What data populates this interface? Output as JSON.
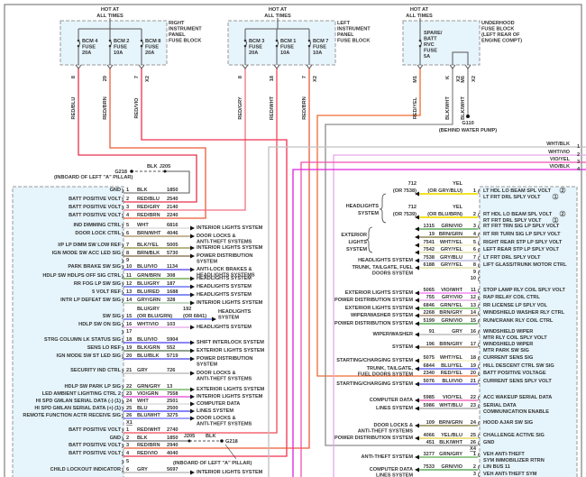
{
  "colors": {
    "RED/BLU": "#e8304a",
    "RED/BRN": "#ee5a38",
    "RED/VIO": "#f03050",
    "RED/GRY": "#f07080",
    "RED/WHT": "#f04858",
    "RED/YEL": "#f06a30",
    "BLK": "#7a7a7a",
    "BLK/WHT": "#8c8c8c",
    "WHT": "#d8d8d8",
    "BRN/WHT": "#a88a5a",
    "BLK/YEL": "#8a8a3a",
    "BRN/BLK": "#7a6040",
    "BLU/VIO": "#4a3cf0",
    "GRN/BRN": "#5a9a3a",
    "BLU/GRY": "#4a5af0",
    "BLU/RED": "#3a4af0",
    "GRY/GRN": "#a0c0a0",
    "WHT/VIO": "#e8a8e8",
    "BLU/BLK": "#4040e0",
    "BLK/GRN": "#4a6a4a",
    "GRY": "#b0b0b0",
    "GRN/GRY": "#5aaa4a",
    "VIO/GRN": "#e040d8",
    "BLU": "#3a3af8",
    "BLU/WHT": "#6a6af8",
    "YEL": "#f2e22a",
    "GRN/VIO": "#3a9a3a",
    "BRN/GRN": "#7a7030",
    "WHT/YEL": "#f2eebc",
    "GRY/YEL": "#dcdca0",
    "GRY/BLU": "#b0b0e0",
    "VIO/WHT": "#f070f0",
    "GRY/VIO": "#e0a0e0",
    "GRN/YEL": "#5ac040",
    "BRN/GRY": "#a08060",
    "BLU/YEL": "#5050f0",
    "YEL/BLU": "#e0d040",
    "VIO/YEL": "#f050b0",
    "WHT/BLK": "#c0c0c0",
    "VIO/BLK": "#e020e0"
  },
  "fuse_blocks": [
    {
      "hot": [
        "HOT AT",
        "ALL TIMES"
      ],
      "title": [
        "RIGHT",
        "INSTRUMENT",
        "PANEL",
        "FUSE BLOCK"
      ],
      "fuses": [
        {
          "name": [
            "BCM 4",
            "FUSE",
            "20A"
          ],
          "pin": "8",
          "conn": "",
          "wire": "RED/BLU"
        },
        {
          "name": [
            "BCM 2",
            "FUSE",
            "10A"
          ],
          "pin": "29",
          "conn": "",
          "wire": "RED/BRN"
        },
        {
          "name": [
            "BCM 8",
            "FUSE",
            "20A"
          ],
          "pin": "7",
          "conn": "X2",
          "wire": "RED/VIO"
        }
      ]
    },
    {
      "hot": [
        "HOT AT",
        "ALL TIMES"
      ],
      "title": [
        "LEFT",
        "INSTRUMENT",
        "PANEL",
        "FUSE BLOCK"
      ],
      "fuses": [
        {
          "name": [
            "BCM 3",
            "FUSE",
            "20A"
          ],
          "pin": "8",
          "conn": "",
          "wire": "RED/GRY"
        },
        {
          "name": [
            "BCM 1",
            "FUSE",
            "10A"
          ],
          "pin": "18",
          "conn": "",
          "wire": "RED/WHT"
        },
        {
          "name": [
            "BCM 7",
            "FUSE",
            "10A"
          ],
          "pin": "7",
          "conn": "X2",
          "wire": "RED/BRN"
        }
      ]
    },
    {
      "hot": [
        "HOT AT",
        "ALL TIMES"
      ],
      "title": [
        "UNDERHOOD",
        "FUSE BLOCK",
        "(LEFT REAR OF",
        "ENGINE COMPT)"
      ],
      "fuses": [
        {
          "name": [
            "SPARE/",
            "BATT",
            "RVC",
            "FUSE",
            "5A"
          ],
          "pin": "M1",
          "conn": "",
          "wire": "RED/YEL"
        },
        {
          "name": [],
          "pin": "K",
          "conn": "X2",
          "wire": "BLK/WHT"
        },
        {
          "name": [],
          "pin": "M6",
          "conn": "X2",
          "wire": "BLK/WHT"
        }
      ]
    }
  ],
  "grounds": {
    "g218_top": {
      "name": "G218",
      "splice": "J205",
      "wire": "BLK",
      "location": "(INBOARD OF LEFT \"A\" PILLAR)"
    },
    "g218_bottom": {
      "name": "G218",
      "splice": "J205",
      "wire": "BLK",
      "location": "(INBOARD OF LEFT \"A\" PILLAR)"
    },
    "g110": {
      "name": "G110",
      "location": "(BEHIND WATER PUMP)"
    }
  },
  "bus_wires": [
    {
      "color": "WHT/BLK",
      "pin": "1"
    },
    {
      "color": "WHT/VIO",
      "pin": "2"
    },
    {
      "color": "VIO/YEL",
      "pin": "3"
    },
    {
      "color": "VIO/BLK",
      "pin": "4"
    }
  ],
  "left_connector": {
    "pins": [
      {
        "pin": "1",
        "label": "GND",
        "color": [
          "BLK"
        ],
        "circuit": [
          "1850"
        ],
        "dest": []
      },
      {
        "pin": "2",
        "label": "BATT POSITIVE VOLT",
        "color": [
          "RED/BLU"
        ],
        "circuit": [
          "2540"
        ],
        "dest": []
      },
      {
        "pin": "3",
        "label": "BATT POSITIVE VOLT",
        "color": [
          "RED/GRY"
        ],
        "circuit": [
          "2140"
        ],
        "dest": []
      },
      {
        "pin": "4",
        "label": "BATT POSITIVE VOLT",
        "color": [
          "RED/BRN"
        ],
        "circuit": [
          "2240"
        ],
        "dest": []
      },
      {
        "pin": "5",
        "label": "IND DIMMING CTRL",
        "color": [
          "WHT"
        ],
        "circuit": [
          "6816"
        ],
        "dest": [
          "INTERIOR LIGHTS SYSTEM"
        ]
      },
      {
        "pin": "6",
        "label": "DOOR LOCK CTRL",
        "color": [
          "BRN/WHT"
        ],
        "circuit": [
          "4046"
        ],
        "dest": [
          "DOOR LOCKS &",
          "ANTI-THEFT SYSTEMS"
        ]
      },
      {
        "pin": "7",
        "label": "I/P LP DIMM SW LOW REF",
        "color": [
          "BLK/YEL"
        ],
        "circuit": [
          "5005"
        ],
        "dest": [
          "INTERIOR LIGHTS SYSTEM"
        ]
      },
      {
        "pin": "8",
        "label": "IGN MODE SW ACC LED SIG",
        "color": [
          "BRN/BLK"
        ],
        "circuit": [
          "5730"
        ],
        "dest": [
          "POWER DISTRIBUTION",
          "SYSTEM"
        ]
      },
      {
        "pin": "9",
        "label": "",
        "color": [],
        "circuit": [],
        "dest": []
      },
      {
        "pin": "10",
        "label": "PARK BRAKE SW SIG",
        "color": [
          "BLU/VIO"
        ],
        "circuit": [
          "1134"
        ],
        "dest": [
          "ANTI-LOCK BRAKES &",
          "HEADLIGHTS SYSTEMS"
        ]
      },
      {
        "pin": "11",
        "label": "HDLP SW HDLPS OFF SIG CTRL",
        "color": [
          "GRN/BRN"
        ],
        "circuit": [
          "308"
        ],
        "dest": [
          "HEADLIGHTS SYSTEM"
        ]
      },
      {
        "pin": "12",
        "label": "RR FOG LP SW SIG",
        "color": [
          "BLU/GRY"
        ],
        "circuit": [
          "187"
        ],
        "dest": [
          "HEADLIGHTS SYSTEM"
        ]
      },
      {
        "pin": "13",
        "label": "5 VOLT REF",
        "color": [
          "BLU/RED"
        ],
        "circuit": [
          "1688"
        ],
        "dest": [
          "HEADLIGHTS SYSTEM"
        ]
      },
      {
        "pin": "14",
        "label": "INTR LP DEFEAT SW SIG",
        "color": [
          "GRY/GRN"
        ],
        "circuit": [
          "328"
        ],
        "dest": [
          "INTERIOR LIGHTS SYSTEM"
        ]
      },
      {
        "pin": "15",
        "label": "SW SIG",
        "color": [
          "BLU/GRY",
          "(OR BLU/GRN)"
        ],
        "circuit": [
          "192",
          "(OR 6841)"
        ],
        "dest": [
          "HEADLIGHTS",
          "SYSTEM"
        ]
      },
      {
        "pin": "16",
        "label": "HDLP SW ON SIG",
        "color": [
          "WHT/VIO"
        ],
        "circuit": [
          "103"
        ],
        "dest": [
          "HEADLIGHTS SYSTEM"
        ]
      },
      {
        "pin": "17",
        "label": "",
        "color": [],
        "circuit": [],
        "dest": []
      },
      {
        "pin": "18",
        "label": "STRG COLUMN LK STATUS SIG",
        "color": [
          "BLU/VIO"
        ],
        "circuit": [
          "5904"
        ],
        "dest": [
          "SHIFT INTERLOCK SYSTEM"
        ]
      },
      {
        "pin": "19",
        "label": "SENS LO REF",
        "color": [
          "BLK/GRN"
        ],
        "circuit": [
          "552"
        ],
        "dest": [
          "EXTERIOR LIGHTS SYSTEM"
        ]
      },
      {
        "pin": "20",
        "label": "IGN MODE SW ST LED SIG",
        "color": [
          "BLU/BLK"
        ],
        "circuit": [
          "5719"
        ],
        "dest": [
          "POWER DISTRIBUTION",
          "SYSTEM"
        ]
      },
      {
        "pin": "21",
        "label": "SECURITY IND CTRL",
        "color": [
          "GRY"
        ],
        "circuit": [
          "726"
        ],
        "dest": [
          "DOOR LOCKS &",
          "ANTI-THEFT SYSTEMS"
        ]
      },
      {
        "pin": "22",
        "label": "HDLP SW PARK LP SIG",
        "color": [
          "GRN/GRY"
        ],
        "circuit": [
          "13"
        ],
        "dest": [
          "EXTERIOR LIGHTS SYSTEM"
        ]
      },
      {
        "pin": "23",
        "label": "LED AMBIENT LIGHTING CTRL 2",
        "color": [
          "VIO/GRN"
        ],
        "circuit": [
          "7558"
        ],
        "dest": [
          "INTERIOR LIGHTS SYSTEM"
        ]
      },
      {
        "pin": "24",
        "label": "HI SPD GMLAN SERIAL DATA (-) (1)",
        "color": [
          "WHT"
        ],
        "circuit": [
          "2501"
        ],
        "dest": [
          "COMPUTER DATA"
        ]
      },
      {
        "pin": "25",
        "label": "HI SPD GMLAN SERIAL DATA (+) (1)",
        "color": [
          "BLU"
        ],
        "circuit": [
          "2500"
        ],
        "dest": [
          "LINES SYSTEM"
        ]
      },
      {
        "pin": "26",
        "label": "REMOTE FUNCTION ACTR RECEIVE SIG",
        "color": [
          "BLU/WHT"
        ],
        "circuit": [
          "3275"
        ],
        "dest": [
          "DOOR LOCKS &",
          "ANTI-THEFT SYSTEMS"
        ]
      }
    ],
    "x1_label": "X1",
    "x1_pins": [
      {
        "pin": "1",
        "label": "BATT POSITIVE VOLT",
        "color": [
          "RED/WHT"
        ],
        "circuit": [
          "2740"
        ],
        "dest": []
      },
      {
        "pin": "2",
        "label": "GND",
        "color": [
          "BLK"
        ],
        "circuit": [
          "1850"
        ],
        "dest": []
      },
      {
        "pin": "3",
        "label": "BATT POSITIVE VOLT",
        "color": [
          "RED/BRN"
        ],
        "circuit": [
          "2940"
        ],
        "dest": []
      },
      {
        "pin": "4",
        "label": "BATT POSITIVE VOLT",
        "color": [
          "RED/VIO"
        ],
        "circuit": [
          "4040"
        ],
        "dest": []
      },
      {
        "pin": "5",
        "label": "",
        "color": [],
        "circuit": [],
        "dest": []
      },
      {
        "pin": "6",
        "label": "CHILD LOCKOUT INDICATOR",
        "color": [
          "GRY"
        ],
        "circuit": [
          "5697"
        ],
        "dest": [
          "INTERIOR LIGHTS SYSTEM"
        ]
      }
    ]
  },
  "right_connector": {
    "pins": [
      {
        "pin": "1",
        "label": [
          "LT HDL LO BEAM SPL VOLT",
          "LT FRT DRL SPLY VOLT"
        ],
        "notes": [
          "2",
          "1"
        ],
        "color": [
          "YEL",
          "(OR GRY/BLU)"
        ],
        "circuit": [
          "712",
          "(OR 7538)"
        ],
        "dest": []
      },
      {
        "pin": "2",
        "label": [
          "RT HDL LO BEAM SPL VOLT",
          "RT FRT DRL SPLY VOLT"
        ],
        "notes": [
          "2",
          "1"
        ],
        "color": [
          "YEL",
          "(OR BLU/BRN)"
        ],
        "circuit": [
          "712",
          "(OR 7539)"
        ],
        "dest": []
      },
      {
        "pin": "3",
        "label": [
          "RT FRT TRN SIG LP SPLY VOLT"
        ],
        "color": [
          "GRN/VIO"
        ],
        "circuit": [
          "1315"
        ],
        "dest": []
      },
      {
        "pin": "4",
        "label": [
          "RT RR TURN SIG LP SPLY VOLT"
        ],
        "color": [
          "BRN/GRN"
        ],
        "circuit": [
          "19"
        ],
        "dest": []
      },
      {
        "pin": "5",
        "label": [
          "RIGHT REAR STP LP SPLY VOLT"
        ],
        "color": [
          "WHT/YEL"
        ],
        "circuit": [
          "7541"
        ],
        "dest": []
      },
      {
        "pin": "6",
        "label": [
          "LEFT REAR STP LP SPLY VOLT"
        ],
        "color": [
          "GRY/YEL"
        ],
        "circuit": [
          "7542"
        ],
        "dest": []
      },
      {
        "pin": "7",
        "label": [
          "LT FRT DRL SPLY VOLT"
        ],
        "color": [
          "GRY/BLU"
        ],
        "circuit": [
          "7538"
        ],
        "dest": [
          "HEADLIGHTS SYSTEM"
        ]
      },
      {
        "pin": "8",
        "label": [
          "LIFT GLASS/TRUNK MOTOR CTRL"
        ],
        "color": [
          "GRY/YEL"
        ],
        "circuit": [
          "6188"
        ],
        "dest": [
          "TRUNK, TAILGATE, FUEL",
          "DOORS SYSTEM"
        ]
      },
      {
        "pin": "9",
        "label": [],
        "color": [],
        "circuit": [],
        "dest": []
      },
      {
        "pin": "10",
        "label": [],
        "color": [],
        "circuit": [],
        "dest": []
      },
      {
        "pin": "11",
        "label": [
          "STOP LAMP RLY COIL SPLY VOLT"
        ],
        "color": [
          "VIO/WHT"
        ],
        "circuit": [
          "5065"
        ],
        "dest": [
          "EXTERIOR LIGHTS SYSTEM"
        ]
      },
      {
        "pin": "12",
        "label": [
          "RAP RELAY COIL CTRL"
        ],
        "color": [
          "GRY/VIO"
        ],
        "circuit": [
          "755"
        ],
        "dest": [
          "POWER DISTRIBUTION SYSTEM"
        ]
      },
      {
        "pin": "13",
        "label": [
          "RR LICENSE LP SPLY VOL"
        ],
        "color": [
          "GRN/YEL"
        ],
        "circuit": [
          "6846"
        ],
        "dest": [
          "EXTERIOR LIGHTS SYSTEM"
        ]
      },
      {
        "pin": "14",
        "label": [
          "WINDSHIELD WASHER RLY CTRL"
        ],
        "color": [
          "BRN/GRY"
        ],
        "circuit": [
          "2268"
        ],
        "dest": [
          "WIPER/WASHER SYSTEM"
        ]
      },
      {
        "pin": "15",
        "label": [
          "RUN/CRANK RLY COIL CTRL"
        ],
        "color": [
          "GRN/VIO"
        ],
        "circuit": [
          "5199"
        ],
        "dest": [
          "POWER DISTRIBUTION SYSTEM"
        ]
      },
      {
        "pin": "16",
        "label": [
          "WINDSHIELD WIPER",
          "MTR RLY COIL SPLY VOLT"
        ],
        "color": [
          "GRY"
        ],
        "circuit": [
          "91"
        ],
        "dest": [
          "WIPER/WASHER"
        ]
      },
      {
        "pin": "17",
        "label": [
          "WINDSHIELD WIPER",
          "MTR PARK SW SIG"
        ],
        "color": [
          "BRN/GRY"
        ],
        "circuit": [
          "196"
        ],
        "dest": [
          "SYSTEM"
        ]
      },
      {
        "pin": "18",
        "label": [
          "CURRENT SENS SIG"
        ],
        "color": [
          "WHT/YEL"
        ],
        "circuit": [
          "5075"
        ],
        "dest": [
          "STARTING/CHARGING SYSTEM"
        ]
      },
      {
        "pin": "19",
        "label": [
          "HILL DESCENT CTRL SW SIG"
        ],
        "color": [
          "BLU/YEL"
        ],
        "circuit": [
          "6844"
        ],
        "dest": [
          "TRUNK, TAILGATE,",
          "FUEL DOORS SYSTEM"
        ]
      },
      {
        "pin": "20",
        "label": [
          "BATT POSITIVE VOLTAGE"
        ],
        "color": [
          "RED/YEL"
        ],
        "circuit": [
          "2340"
        ],
        "dest": []
      },
      {
        "pin": "21",
        "label": [
          "CURRENT SENS SPLY VOLT"
        ],
        "color": [
          "BLU/VIO"
        ],
        "circuit": [
          "5076"
        ],
        "dest": [
          "STARTING/CHARGING SYSTEM"
        ]
      },
      {
        "pin": "22",
        "label": [
          "ACC WAKEUP SERIAL DATA"
        ],
        "color": [
          "VIO/YEL"
        ],
        "circuit": [
          "5985"
        ],
        "dest": [
          "COMPUTER DATA"
        ]
      },
      {
        "pin": "23",
        "label": [
          "SERIAL DATA",
          "COMMUNICATION ENABLE"
        ],
        "color": [
          "WHT/BLU"
        ],
        "circuit": [
          "5986"
        ],
        "dest": [
          "LINES SYSTEM"
        ]
      },
      {
        "pin": "24",
        "label": [
          "HOOD AJAR SW SIG"
        ],
        "color": [
          "BRN/GRN"
        ],
        "circuit": [
          "109"
        ],
        "dest": [
          "DOOR LOCKS &",
          "ANTI-THEFT SYSTEMS"
        ]
      },
      {
        "pin": "25",
        "label": [
          "CHALLENGE ACTIVE SIG"
        ],
        "color": [
          "YEL/BLU"
        ],
        "circuit": [
          "4066"
        ],
        "dest": [
          "POWER DISTRIBUTION SYSTEM"
        ]
      },
      {
        "pin": "26",
        "label": [
          "GND"
        ],
        "color": [
          "BLK/WHT"
        ],
        "circuit": [
          "451"
        ],
        "dest": []
      }
    ],
    "headlights_dest": [
      "HEADLIGHTS",
      "SYSTEM"
    ],
    "exterior_dest": [
      "EXTERIOR",
      "LIGHTS",
      "SYSTEM"
    ],
    "x4_label": "X4",
    "x4_pins": [
      {
        "pin": "1",
        "label": [
          "VEH ANTI-THEFT",
          "SYM IMMOBILIZER RTRN"
        ],
        "color": [
          "GRN/GRY"
        ],
        "circuit": [
          "3277"
        ],
        "dest": [
          "ANTI-THEFT SYSTEM"
        ]
      },
      {
        "pin": "2",
        "label": [
          "LIN BUS 11"
        ],
        "color": [
          "GRN/VIO"
        ],
        "circuit": [
          "7533"
        ],
        "dest": [
          "COMPUTER DATA",
          "LINES SYSTEM"
        ]
      },
      {
        "pin": "3",
        "label": [
          "VEH ANTI-THEFT SYM"
        ],
        "color": [],
        "circuit": [],
        "dest": []
      }
    ]
  }
}
